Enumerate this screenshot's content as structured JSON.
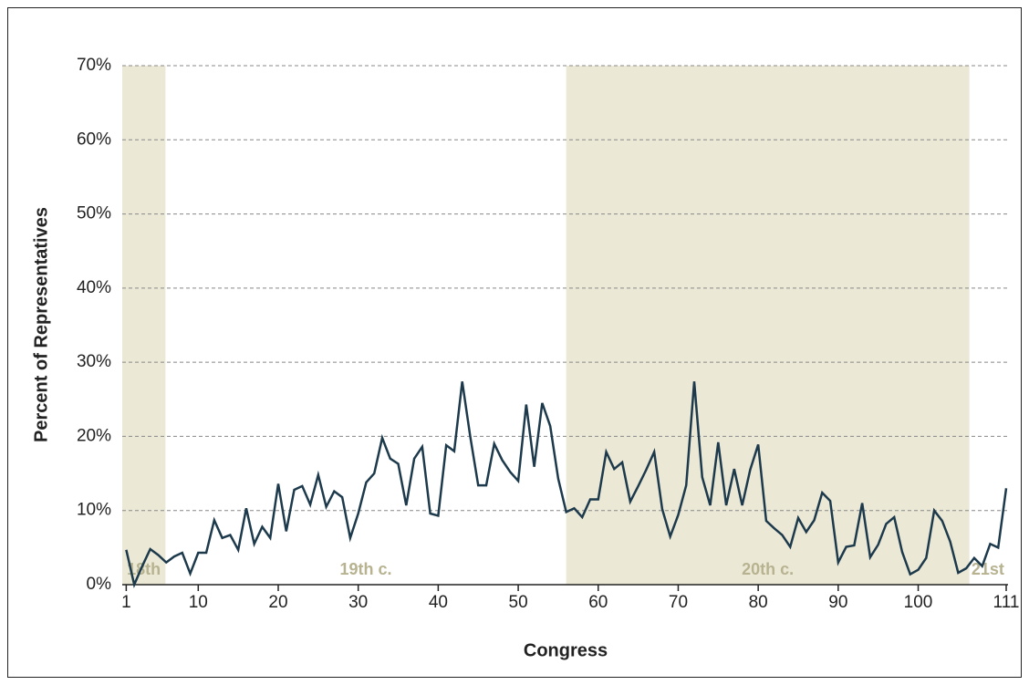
{
  "chart_data": {
    "type": "line",
    "x_label": "Congress",
    "y_label": "Percent of Representatives",
    "x": [
      1,
      2,
      3,
      4,
      5,
      6,
      7,
      8,
      9,
      10,
      11,
      12,
      13,
      14,
      15,
      16,
      17,
      18,
      19,
      20,
      21,
      22,
      23,
      24,
      25,
      26,
      27,
      28,
      29,
      30,
      31,
      32,
      33,
      34,
      35,
      36,
      37,
      38,
      39,
      40,
      41,
      42,
      43,
      44,
      45,
      46,
      47,
      48,
      49,
      50,
      51,
      52,
      53,
      54,
      55,
      56,
      57,
      58,
      59,
      60,
      61,
      62,
      63,
      64,
      65,
      66,
      67,
      68,
      69,
      70,
      71,
      72,
      73,
      74,
      75,
      76,
      77,
      78,
      79,
      80,
      81,
      82,
      83,
      84,
      85,
      86,
      87,
      88,
      89,
      90,
      91,
      92,
      93,
      94,
      95,
      96,
      97,
      98,
      99,
      100,
      101,
      102,
      103,
      104,
      105,
      106,
      107,
      108,
      109,
      110,
      111
    ],
    "series": [
      {
        "color": "#1d3a4c",
        "values": [
          4.7,
          0,
          2.5,
          4.8,
          4,
          3,
          3.8,
          4.3,
          1.5,
          4.3,
          4.3,
          8.7,
          6.3,
          6.7,
          4.7,
          10.3,
          5.5,
          7.8,
          6.3,
          13.6,
          7.2,
          12.8,
          13.3,
          10.8,
          14.8,
          10.5,
          12.6,
          11.8,
          6.3,
          9.6,
          13.8,
          15,
          19.8,
          17,
          16.3,
          10.7,
          17,
          18.6,
          9.6,
          9.3,
          18.8,
          18,
          27.4,
          20,
          13.4,
          13.4,
          19,
          16.8,
          15.2,
          14,
          24.3,
          15.9,
          24.5,
          21.4,
          14.3,
          9.8,
          10.3,
          9.1,
          11.5,
          11.5,
          17.9,
          15.6,
          16.5,
          11.2,
          13.3,
          15.5,
          17.9,
          10.2,
          6.5,
          9.4,
          13.4,
          27.4,
          14.5,
          10.7,
          19.2,
          10.7,
          15.6,
          10.7,
          15.5,
          18.9,
          8.6,
          7.6,
          6.7,
          5.1,
          9,
          7.1,
          8.7,
          12.4,
          11.3,
          3,
          5.1,
          5.3,
          11,
          3.7,
          5.4,
          8.2,
          9.1,
          4.4,
          1.4,
          2,
          3.6,
          10,
          8.6,
          5.8,
          1.6,
          2.2,
          3.6,
          2.5,
          5.5,
          5,
          13
        ]
      }
    ],
    "bands": [
      {
        "label": "18th",
        "range": [
          0.5,
          5.9
        ],
        "shaded": true
      },
      {
        "label": "19th c.",
        "range": [
          5.9,
          56
        ],
        "shaded": false
      },
      {
        "label": "20th c.",
        "range": [
          56,
          106.4
        ],
        "shaded": true
      },
      {
        "label": "21st",
        "range": [
          106.4,
          111
        ],
        "shaded": false
      }
    ],
    "band_color": "#ebe8d6",
    "xlim": [
      0.5,
      111
    ],
    "xticks": [
      1,
      10,
      20,
      30,
      40,
      50,
      60,
      70,
      80,
      90,
      100,
      111
    ],
    "ylim": [
      0,
      70
    ],
    "yticks": [
      {
        "value": 0,
        "label": "0%"
      },
      {
        "value": 10,
        "label": "10%"
      },
      {
        "value": 20,
        "label": "20%"
      },
      {
        "value": 30,
        "label": "30%"
      },
      {
        "value": 40,
        "label": "40%"
      },
      {
        "value": 50,
        "label": "50%"
      },
      {
        "value": 60,
        "label": "60%"
      },
      {
        "value": 70,
        "label": "70%"
      }
    ],
    "grid": true
  }
}
